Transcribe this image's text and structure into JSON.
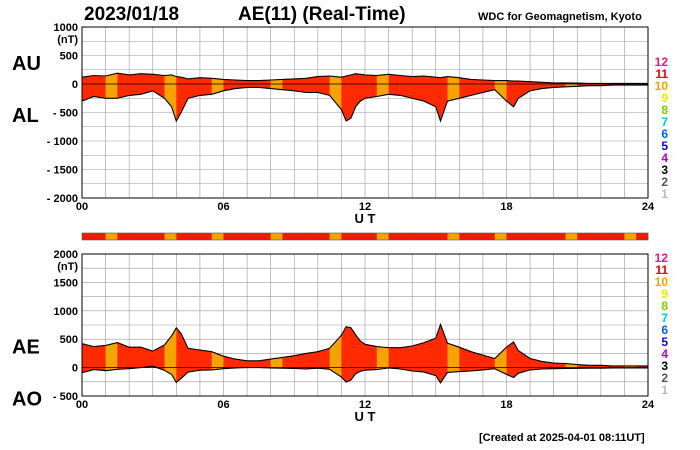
{
  "header": {
    "date": "2023/01/18",
    "title": "AE(11) (Real-Time)",
    "credit": "WDC for Geomagnetism, Kyoto"
  },
  "footer": {
    "created": "[Created at 2025-04-01 08:11UT]"
  },
  "colors": {
    "background": "#ffffff",
    "fill_main": "#ff2a00",
    "fill_alt": "#f5a300",
    "grid": "#9a9a9a",
    "bar_red": "#ee1b00",
    "bar_orange": "#f5a300"
  },
  "station_legend": [
    {
      "label": "12",
      "color": "#e8178a"
    },
    {
      "label": "11",
      "color": "#e8000b"
    },
    {
      "label": "10",
      "color": "#f5a300"
    },
    {
      "label": "9",
      "color": "#f0e800"
    },
    {
      "label": "8",
      "color": "#7fd000"
    },
    {
      "label": "7",
      "color": "#00c8d8"
    },
    {
      "label": "6",
      "color": "#0060ff"
    },
    {
      "label": "5",
      "color": "#1a00c8"
    },
    {
      "label": "4",
      "color": "#c000c8"
    },
    {
      "label": "3",
      "color": "#000000"
    },
    {
      "label": "2",
      "color": "#555555"
    },
    {
      "label": "1",
      "color": "#bbbbbb"
    }
  ],
  "station_count_bar": [
    11,
    11,
    10,
    11,
    11,
    11,
    11,
    10,
    11,
    11,
    11,
    10,
    11,
    11,
    11,
    11,
    10,
    11,
    11,
    11,
    11,
    10,
    11,
    11,
    11,
    10,
    11,
    11,
    11,
    11,
    11,
    10,
    11,
    11,
    11,
    10,
    11,
    11,
    11,
    11,
    11,
    10,
    11,
    11,
    11,
    11,
    10,
    11
  ],
  "chart_data": [
    {
      "type": "area",
      "name": "AU / AL",
      "labels_upper": "AU",
      "labels_lower": "AL",
      "unit_label": "(nT)",
      "xlabel": "U T",
      "xlim": [
        0,
        24
      ],
      "ylim": [
        -2000,
        1000
      ],
      "xticks": [
        "00",
        "06",
        "12",
        "18",
        "24"
      ],
      "yticks": [
        "1000",
        "500",
        "0",
        "- 500",
        "- 1000",
        "- 1500",
        "- 2000"
      ],
      "x": [
        0,
        0.5,
        1,
        1.5,
        2,
        2.5,
        3,
        3.5,
        3.8,
        4,
        4.2,
        4.5,
        5,
        5.5,
        6,
        6.5,
        7,
        7.5,
        8,
        8.5,
        9,
        9.5,
        10,
        10.5,
        11,
        11.2,
        11.4,
        11.6,
        11.8,
        12,
        12.5,
        13,
        13.5,
        14,
        14.5,
        15,
        15.2,
        15.5,
        16,
        16.5,
        17,
        17.5,
        18,
        18.3,
        18.5,
        19,
        19.5,
        20,
        20.5,
        21,
        21.5,
        22,
        22.5,
        23,
        23.5,
        24
      ],
      "series": [
        {
          "name": "AU",
          "values": [
            120,
            150,
            140,
            190,
            160,
            180,
            170,
            150,
            160,
            130,
            120,
            90,
            110,
            100,
            80,
            70,
            60,
            60,
            70,
            80,
            90,
            100,
            130,
            140,
            120,
            140,
            160,
            180,
            170,
            160,
            150,
            170,
            150,
            130,
            140,
            120,
            110,
            130,
            110,
            80,
            70,
            60,
            60,
            50,
            50,
            40,
            30,
            20,
            20,
            15,
            10,
            10,
            10,
            10,
            10,
            10
          ]
        },
        {
          "name": "AL",
          "values": [
            -300,
            -220,
            -250,
            -250,
            -200,
            -180,
            -120,
            -250,
            -400,
            -650,
            -500,
            -250,
            -200,
            -180,
            -120,
            -80,
            -60,
            -60,
            -80,
            -100,
            -120,
            -150,
            -150,
            -200,
            -450,
            -650,
            -600,
            -400,
            -300,
            -250,
            -220,
            -180,
            -200,
            -250,
            -300,
            -400,
            -650,
            -300,
            -250,
            -200,
            -150,
            -100,
            -300,
            -400,
            -250,
            -120,
            -80,
            -60,
            -50,
            -40,
            -30,
            -30,
            -20,
            -20,
            -20,
            -20
          ]
        }
      ]
    },
    {
      "type": "area",
      "name": "AE / AO",
      "labels_upper": "AE",
      "labels_lower": "AO",
      "unit_label": "(nT)",
      "xlabel": "U T",
      "xlim": [
        0,
        24
      ],
      "ylim": [
        -500,
        2000
      ],
      "xticks": [
        "00",
        "06",
        "12",
        "18",
        "24"
      ],
      "yticks": [
        "2000",
        "1500",
        "1000",
        "500",
        "0",
        "- 500"
      ],
      "x": [
        0,
        0.5,
        1,
        1.5,
        2,
        2.5,
        3,
        3.5,
        3.8,
        4,
        4.2,
        4.5,
        5,
        5.5,
        6,
        6.5,
        7,
        7.5,
        8,
        8.5,
        9,
        9.5,
        10,
        10.5,
        11,
        11.2,
        11.4,
        11.6,
        11.8,
        12,
        12.5,
        13,
        13.5,
        14,
        14.5,
        15,
        15.2,
        15.5,
        16,
        16.5,
        17,
        17.5,
        18,
        18.3,
        18.5,
        19,
        19.5,
        20,
        20.5,
        21,
        21.5,
        22,
        22.5,
        23,
        23.5,
        24
      ],
      "series": [
        {
          "name": "AE",
          "values": [
            420,
            370,
            390,
            440,
            360,
            360,
            290,
            400,
            560,
            700,
            600,
            340,
            310,
            280,
            200,
            150,
            120,
            120,
            150,
            180,
            210,
            250,
            280,
            340,
            570,
            720,
            700,
            580,
            470,
            410,
            370,
            350,
            350,
            380,
            440,
            520,
            760,
            430,
            360,
            280,
            220,
            160,
            360,
            450,
            300,
            160,
            110,
            80,
            70,
            55,
            40,
            40,
            30,
            30,
            30,
            30
          ]
        },
        {
          "name": "AO",
          "values": [
            -90,
            -35,
            -55,
            -30,
            -20,
            0,
            25,
            -50,
            -120,
            -260,
            -190,
            -80,
            -45,
            -40,
            -20,
            -5,
            0,
            0,
            -5,
            -10,
            -15,
            -25,
            -10,
            -30,
            -165,
            -255,
            -220,
            -110,
            -65,
            -45,
            -35,
            -5,
            -25,
            -60,
            -80,
            -140,
            -270,
            -85,
            -70,
            -60,
            -40,
            -20,
            -120,
            -175,
            -100,
            -40,
            -25,
            -20,
            -15,
            -12,
            -10,
            -10,
            -5,
            -5,
            -5,
            -5
          ]
        }
      ]
    }
  ]
}
